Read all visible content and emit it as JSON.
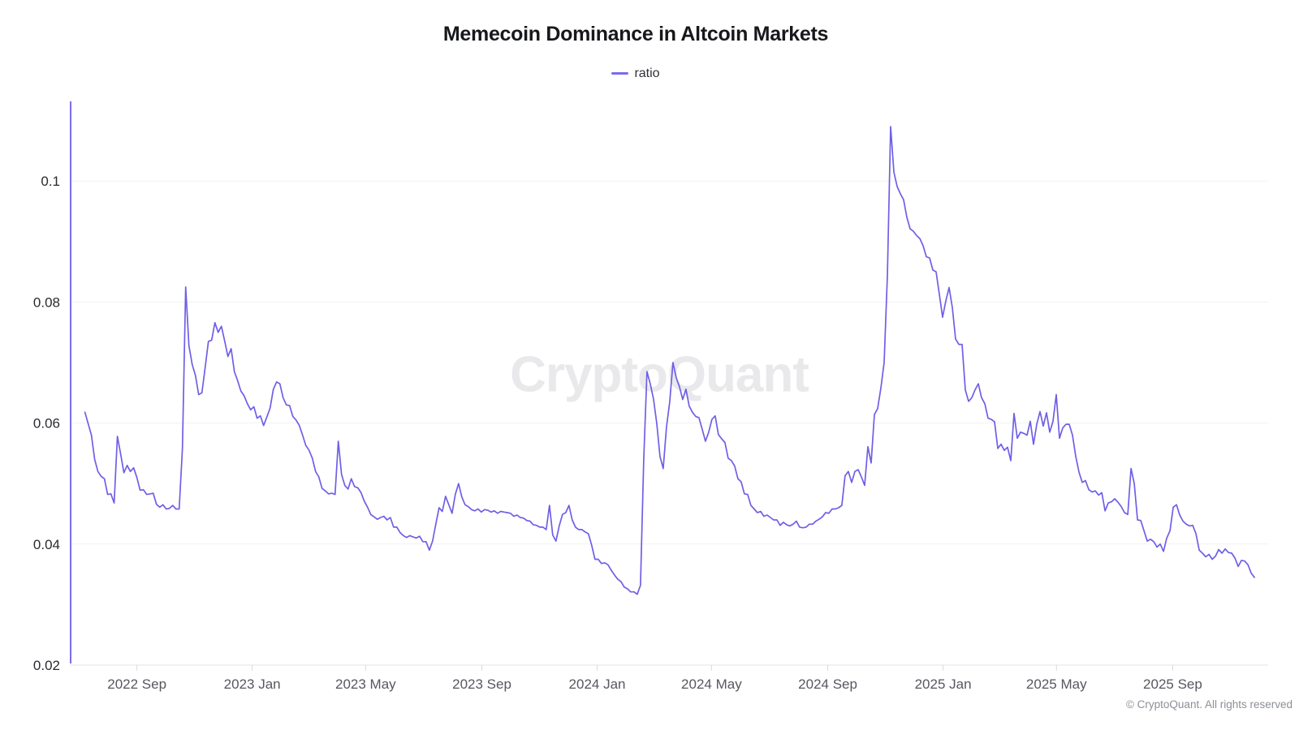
{
  "title": "Memecoin Dominance in Altcoin Markets",
  "legend": {
    "label": "ratio"
  },
  "watermark": "CryptoQuant",
  "footer": "© CryptoQuant. All rights reserved",
  "colors": {
    "line": "#6f5fe6",
    "axis_line": "#7b6cea",
    "grid": "#f1f1f3",
    "axis_bottom": "#e2e3e6",
    "tick": "#d9dadd",
    "y_label": "#2a2b30",
    "x_label": "#56585f"
  },
  "chart_data": {
    "type": "line",
    "title": "Memecoin Dominance in Altcoin Markets",
    "series_name": "ratio",
    "xlabel": "",
    "ylabel": "",
    "grid": "horizontal",
    "legend_position": "top-center",
    "x_domain": [
      "2022-06-22",
      "2025-12-11"
    ],
    "x_ticks": [
      {
        "label": "2022 Sep",
        "day": 71
      },
      {
        "label": "2023 Jan",
        "day": 193
      },
      {
        "label": "2023 May",
        "day": 313
      },
      {
        "label": "2023 Sep",
        "day": 436
      },
      {
        "label": "2024 Jan",
        "day": 558
      },
      {
        "label": "2024 May",
        "day": 679
      },
      {
        "label": "2024 Sep",
        "day": 802
      },
      {
        "label": "2025 Jan",
        "day": 924
      },
      {
        "label": "2025 May",
        "day": 1044
      },
      {
        "label": "2025 Sep",
        "day": 1167
      }
    ],
    "ylim": [
      0.02,
      0.1133
    ],
    "y_ticks": [
      0.02,
      0.04,
      0.06,
      0.08,
      0.1
    ],
    "y_tick_labels": [
      "0.02",
      "0.04",
      "0.06",
      "0.08",
      "0.1"
    ],
    "series_start_date": "2022-07-08",
    "sample_step_days": 3.4375,
    "values_scale": 0.0001,
    "values": [
      618,
      599,
      580,
      540,
      520,
      512,
      508,
      482,
      483,
      468,
      578,
      549,
      518,
      530,
      520,
      526,
      510,
      489,
      490,
      482,
      483,
      484,
      466,
      461,
      465,
      458,
      459,
      464,
      458,
      458,
      558,
      825,
      728,
      697,
      679,
      647,
      650,
      692,
      735,
      737,
      766,
      750,
      760,
      736,
      710,
      723,
      685,
      670,
      653,
      645,
      632,
      622,
      627,
      608,
      612,
      596,
      610,
      625,
      656,
      668,
      665,
      642,
      630,
      629,
      611,
      605,
      596,
      580,
      563,
      555,
      542,
      520,
      511,
      492,
      488,
      483,
      484,
      482,
      570,
      515,
      497,
      491,
      508,
      495,
      493,
      485,
      471,
      461,
      449,
      445,
      441,
      444,
      446,
      440,
      444,
      428,
      428,
      419,
      414,
      411,
      414,
      412,
      410,
      413,
      404,
      404,
      390,
      405,
      433,
      460,
      454,
      479,
      465,
      451,
      482,
      500,
      478,
      465,
      462,
      457,
      455,
      458,
      453,
      457,
      456,
      453,
      455,
      451,
      454,
      453,
      452,
      451,
      446,
      448,
      444,
      443,
      439,
      438,
      432,
      431,
      428,
      428,
      424,
      464,
      415,
      405,
      430,
      449,
      452,
      464,
      440,
      428,
      424,
      424,
      420,
      417,
      398,
      375,
      375,
      368,
      369,
      366,
      357,
      349,
      342,
      338,
      329,
      326,
      321,
      321,
      317,
      332,
      540,
      685,
      665,
      640,
      600,
      545,
      525,
      593,
      635,
      700,
      675,
      660,
      639,
      656,
      628,
      618,
      611,
      609,
      590,
      570,
      585,
      606,
      612,
      581,
      574,
      568,
      542,
      538,
      529,
      508,
      503,
      483,
      482,
      464,
      458,
      452,
      454,
      446,
      448,
      444,
      440,
      440,
      431,
      436,
      432,
      430,
      433,
      438,
      428,
      427,
      428,
      433,
      433,
      438,
      441,
      445,
      452,
      451,
      458,
      458,
      460,
      464,
      513,
      520,
      502,
      520,
      523,
      511,
      497,
      561,
      534,
      614,
      624,
      658,
      700,
      843,
      1090,
      1015,
      991,
      979,
      969,
      940,
      921,
      917,
      910,
      905,
      893,
      875,
      873,
      853,
      850,
      813,
      775,
      802,
      824,
      791,
      739,
      730,
      730,
      655,
      636,
      642,
      655,
      665,
      642,
      632,
      608,
      606,
      602,
      558,
      565,
      555,
      560,
      538,
      616,
      575,
      585,
      583,
      580,
      603,
      565,
      598,
      619,
      595,
      617,
      585,
      603,
      647,
      575,
      592,
      598,
      598,
      580,
      545,
      519,
      502,
      505,
      490,
      486,
      488,
      481,
      485,
      455,
      468,
      470,
      475,
      469,
      462,
      452,
      449,
      525,
      500,
      440,
      439,
      422,
      405,
      408,
      404,
      395,
      400,
      388,
      410,
      422,
      461,
      465,
      448,
      438,
      433,
      430,
      431,
      417,
      390,
      385,
      379,
      383,
      375,
      380,
      391,
      385,
      392,
      386,
      385,
      377,
      363,
      373,
      372,
      366,
      352,
      345
    ]
  },
  "layout_note": ""
}
